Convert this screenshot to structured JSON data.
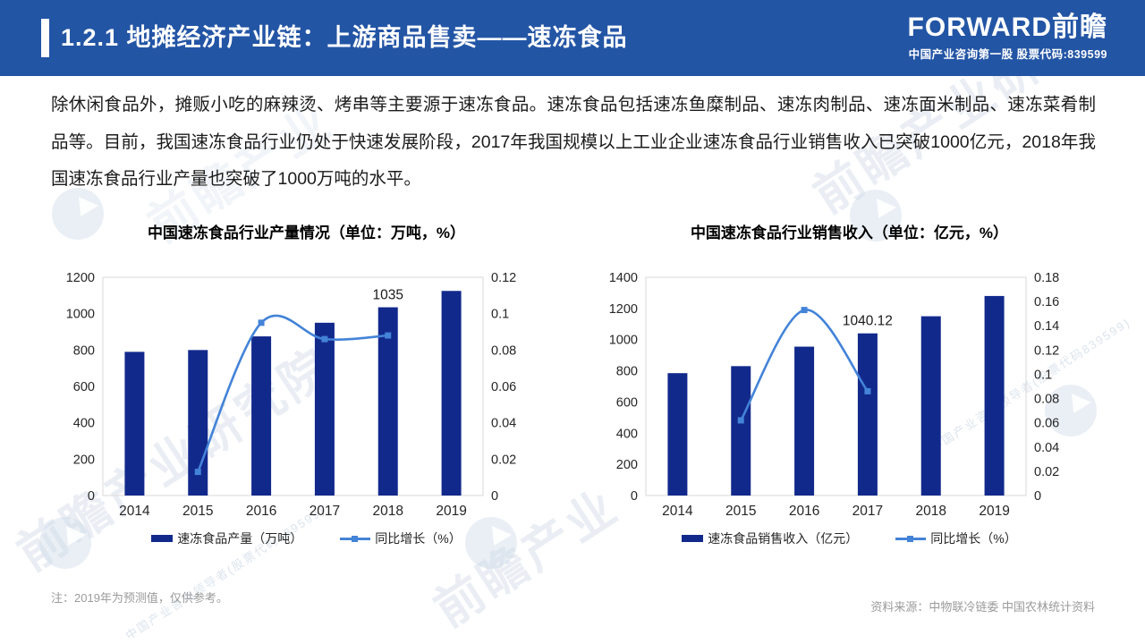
{
  "header": {
    "title": "1.2.1 地摊经济产业链：上游商品售卖——速冻食品",
    "logo_text": "FORWARD前瞻",
    "logo_sub": "中国产业咨询第一股  股票代码:839599"
  },
  "intro_paragraph": "除休闲食品外，摊贩小吃的麻辣烫、烤串等主要源于速冻食品。速冻食品包括速冻鱼糜制品、速冻肉制品、速冻面米制品、速冻菜肴制品等。目前，我国速冻食品行业仍处于快速发展阶段，2017年我国规模以上工业企业速冻食品行业销售收入已突破1000亿元，2018年我国速冻食品行业产量也突破了1000万吨的水平。",
  "colors": {
    "header_bg": "#2355a5",
    "bar": "#12298c",
    "line": "#4383d8",
    "axis_text": "#262626",
    "plot_border": "#d9d9d9",
    "annotation_text": "#1a1a1a"
  },
  "chart_data": [
    {
      "type": "bar",
      "title": "中国速冻食品行业产量情况（单位：万吨，%）",
      "categories": [
        "2014",
        "2015",
        "2016",
        "2017",
        "2018",
        "2019"
      ],
      "series": [
        {
          "name": "速冻食品产量（万吨）",
          "type": "bar",
          "axis": "left",
          "values": [
            790,
            800,
            875,
            950,
            1035,
            1125
          ]
        },
        {
          "name": "同比增长（%）",
          "type": "line",
          "axis": "right",
          "values": [
            null,
            0.013,
            0.095,
            0.086,
            0.088,
            null
          ]
        }
      ],
      "left_axis": {
        "ticks": [
          0,
          200,
          400,
          600,
          800,
          1000,
          1200
        ],
        "max": 1200
      },
      "right_axis": {
        "ticks": [
          0,
          0.02,
          0.04,
          0.06,
          0.08,
          0.1,
          0.12
        ],
        "max": 0.12
      },
      "annotation": {
        "category_index": 4,
        "text": "1035"
      },
      "legend_position": "bottom",
      "grid": false
    },
    {
      "type": "bar",
      "title": "中国速冻食品行业销售收入（单位：亿元，%）",
      "categories": [
        "2014",
        "2015",
        "2016",
        "2017",
        "2018",
        "2019"
      ],
      "series": [
        {
          "name": "速冻食品销售收入（亿元）",
          "type": "bar",
          "axis": "left",
          "values": [
            785,
            830,
            955,
            1040.12,
            1150,
            1280
          ]
        },
        {
          "name": "同比增长（%）",
          "type": "line",
          "axis": "right",
          "values": [
            null,
            0.062,
            0.153,
            0.086,
            null,
            null
          ]
        }
      ],
      "left_axis": {
        "ticks": [
          0,
          200,
          400,
          600,
          800,
          1000,
          1200,
          1400
        ],
        "max": 1400
      },
      "right_axis": {
        "ticks": [
          0,
          0.02,
          0.04,
          0.06,
          0.08,
          0.1,
          0.12,
          0.14,
          0.16,
          0.18
        ],
        "max": 0.18
      },
      "annotation": {
        "category_index": 3,
        "text": "1040.12"
      },
      "legend_position": "bottom",
      "grid": false
    }
  ],
  "footer": {
    "note": "注：2019年为预测值，仅供参考。",
    "source": "资料来源：中物联冷链委 中国农林统计资料"
  },
  "watermark": {
    "brand_text": "前瞻产业研究院",
    "brand_text_short": "前瞻产业",
    "tagline": "中国产业咨询领导者(股票代码839599)"
  }
}
